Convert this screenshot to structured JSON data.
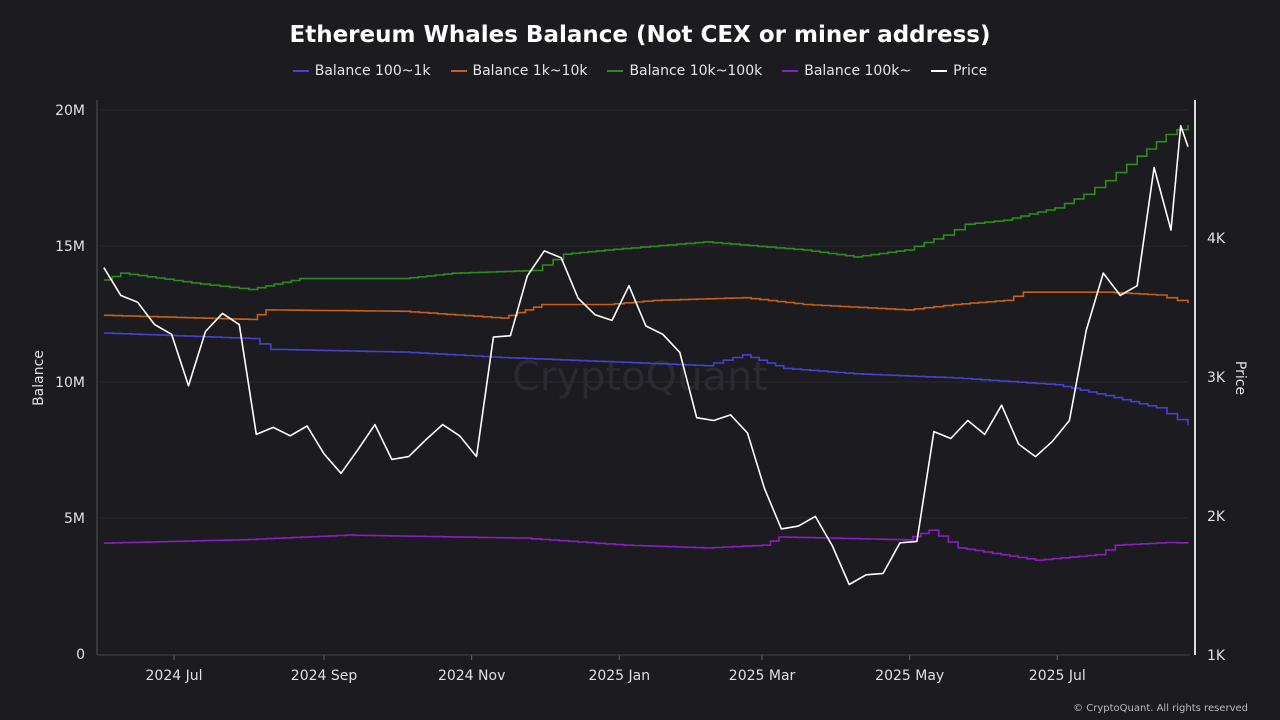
{
  "chart_data": {
    "type": "line",
    "title": "Ethereum Whales Balance (Not CEX or miner address)",
    "ylabel": "Balance",
    "y2label": "Price",
    "ylim": [
      0,
      20500000
    ],
    "y2lim": [
      1000,
      5000
    ],
    "y2scale": "linear",
    "grid": true,
    "legend": "top",
    "xticks": [
      {
        "date": "2024-07-01",
        "label": "2024 Jul"
      },
      {
        "date": "2024-09-01",
        "label": "2024 Sep"
      },
      {
        "date": "2024-11-01",
        "label": "2024 Nov"
      },
      {
        "date": "2025-01-01",
        "label": "2025 Jan"
      },
      {
        "date": "2025-03-01",
        "label": "2025 Mar"
      },
      {
        "date": "2025-05-01",
        "label": "2025 May"
      },
      {
        "date": "2025-07-01",
        "label": "2025 Jul"
      }
    ],
    "yticks": [
      {
        "v": 0,
        "label": "0"
      },
      {
        "v": 5000000,
        "label": "5M"
      },
      {
        "v": 10000000,
        "label": "10M"
      },
      {
        "v": 15000000,
        "label": "15M"
      },
      {
        "v": 20000000,
        "label": "20M"
      }
    ],
    "y2ticks": [
      {
        "v": 1000,
        "label": "1K"
      },
      {
        "v": 2000,
        "label": "2K"
      },
      {
        "v": 3000,
        "label": "3K"
      },
      {
        "v": 4000,
        "label": "4K"
      }
    ],
    "series": [
      {
        "name": "Balance 100~1k",
        "axis": "left",
        "color": "#4b3fd1",
        "points": [
          [
            "2024-06-02",
            11800000
          ],
          [
            "2024-08-01",
            11600000
          ],
          [
            "2024-08-10",
            11200000
          ],
          [
            "2024-10-03",
            11100000
          ],
          [
            "2024-11-13",
            10900000
          ],
          [
            "2024-12-26",
            10750000
          ],
          [
            "2025-02-05",
            10600000
          ],
          [
            "2025-02-21",
            11000000
          ],
          [
            "2025-03-10",
            10500000
          ],
          [
            "2025-04-08",
            10300000
          ],
          [
            "2025-05-19",
            10150000
          ],
          [
            "2025-06-30",
            9900000
          ],
          [
            "2025-07-21",
            9500000
          ],
          [
            "2025-08-11",
            9050000
          ],
          [
            "2025-08-24",
            8400000
          ]
        ]
      },
      {
        "name": "Balance 1k~10k",
        "axis": "left",
        "color": "#c8601a",
        "points": [
          [
            "2024-06-02",
            12450000
          ],
          [
            "2024-08-01",
            12300000
          ],
          [
            "2024-08-08",
            12650000
          ],
          [
            "2024-10-03",
            12600000
          ],
          [
            "2024-11-13",
            12350000
          ],
          [
            "2024-11-30",
            12850000
          ],
          [
            "2024-12-26",
            12850000
          ],
          [
            "2025-01-15",
            13000000
          ],
          [
            "2025-02-21",
            13100000
          ],
          [
            "2025-03-18",
            12850000
          ],
          [
            "2025-04-29",
            12650000
          ],
          [
            "2025-05-19",
            12850000
          ],
          [
            "2025-06-09",
            13000000
          ],
          [
            "2025-06-17",
            13300000
          ],
          [
            "2025-07-21",
            13300000
          ],
          [
            "2025-08-11",
            13200000
          ],
          [
            "2025-08-24",
            12900000
          ]
        ]
      },
      {
        "name": "Balance 10k~100k",
        "axis": "left",
        "color": "#2e8b1e",
        "points": [
          [
            "2024-06-02",
            13750000
          ],
          [
            "2024-06-09",
            14000000
          ],
          [
            "2024-07-12",
            13600000
          ],
          [
            "2024-08-01",
            13400000
          ],
          [
            "2024-08-22",
            13800000
          ],
          [
            "2024-10-03",
            13800000
          ],
          [
            "2024-10-24",
            14000000
          ],
          [
            "2024-11-26",
            14100000
          ],
          [
            "2024-12-09",
            14700000
          ],
          [
            "2024-12-26",
            14850000
          ],
          [
            "2025-02-05",
            15150000
          ],
          [
            "2025-03-18",
            14850000
          ],
          [
            "2025-04-08",
            14600000
          ],
          [
            "2025-04-29",
            14850000
          ],
          [
            "2025-05-15",
            15400000
          ],
          [
            "2025-05-24",
            15800000
          ],
          [
            "2025-06-09",
            15950000
          ],
          [
            "2025-06-30",
            16400000
          ],
          [
            "2025-07-12",
            16900000
          ],
          [
            "2025-07-21",
            17400000
          ],
          [
            "2025-08-03",
            18300000
          ],
          [
            "2025-08-15",
            19100000
          ],
          [
            "2025-08-24",
            19450000
          ]
        ]
      },
      {
        "name": "Balance 100k~",
        "axis": "left",
        "color": "#8a1fc0",
        "points": [
          [
            "2024-06-02",
            4080000
          ],
          [
            "2024-07-28",
            4200000
          ],
          [
            "2024-09-10",
            4370000
          ],
          [
            "2024-11-22",
            4260000
          ],
          [
            "2025-01-03",
            4000000
          ],
          [
            "2025-02-05",
            3900000
          ],
          [
            "2025-03-01",
            4000000
          ],
          [
            "2025-03-08",
            4300000
          ],
          [
            "2025-04-29",
            4200000
          ],
          [
            "2025-05-09",
            4550000
          ],
          [
            "2025-05-21",
            3900000
          ],
          [
            "2025-06-22",
            3450000
          ],
          [
            "2025-07-17",
            3650000
          ],
          [
            "2025-07-25",
            4000000
          ],
          [
            "2025-08-15",
            4100000
          ],
          [
            "2025-08-24",
            4080000
          ]
        ]
      },
      {
        "name": "Price",
        "axis": "right",
        "color": "#ffffff",
        "points": [
          [
            "2024-06-02",
            3780
          ],
          [
            "2024-06-09",
            3580
          ],
          [
            "2024-06-16",
            3530
          ],
          [
            "2024-06-23",
            3370
          ],
          [
            "2024-06-30",
            3300
          ],
          [
            "2024-07-07",
            2930
          ],
          [
            "2024-07-14",
            3320
          ],
          [
            "2024-07-21",
            3450
          ],
          [
            "2024-07-28",
            3370
          ],
          [
            "2024-08-04",
            2580
          ],
          [
            "2024-08-11",
            2630
          ],
          [
            "2024-08-18",
            2570
          ],
          [
            "2024-08-25",
            2640
          ],
          [
            "2024-09-01",
            2440
          ],
          [
            "2024-09-08",
            2300
          ],
          [
            "2024-09-15",
            2470
          ],
          [
            "2024-09-22",
            2650
          ],
          [
            "2024-09-29",
            2400
          ],
          [
            "2024-10-06",
            2420
          ],
          [
            "2024-10-13",
            2540
          ],
          [
            "2024-10-20",
            2650
          ],
          [
            "2024-10-27",
            2570
          ],
          [
            "2024-11-03",
            2420
          ],
          [
            "2024-11-10",
            3280
          ],
          [
            "2024-11-17",
            3290
          ],
          [
            "2024-11-24",
            3720
          ],
          [
            "2024-12-01",
            3900
          ],
          [
            "2024-12-08",
            3850
          ],
          [
            "2024-12-15",
            3560
          ],
          [
            "2024-12-22",
            3440
          ],
          [
            "2024-12-29",
            3400
          ],
          [
            "2025-01-05",
            3650
          ],
          [
            "2025-01-12",
            3360
          ],
          [
            "2025-01-19",
            3300
          ],
          [
            "2025-01-26",
            3170
          ],
          [
            "2025-02-02",
            2700
          ],
          [
            "2025-02-09",
            2680
          ],
          [
            "2025-02-16",
            2720
          ],
          [
            "2025-02-23",
            2590
          ],
          [
            "2025-03-02",
            2190
          ],
          [
            "2025-03-09",
            1900
          ],
          [
            "2025-03-16",
            1920
          ],
          [
            "2025-03-23",
            1990
          ],
          [
            "2025-03-30",
            1780
          ],
          [
            "2025-04-06",
            1500
          ],
          [
            "2025-04-13",
            1570
          ],
          [
            "2025-04-20",
            1580
          ],
          [
            "2025-04-27",
            1800
          ],
          [
            "2025-05-04",
            1810
          ],
          [
            "2025-05-11",
            2600
          ],
          [
            "2025-05-18",
            2550
          ],
          [
            "2025-05-25",
            2680
          ],
          [
            "2025-06-01",
            2580
          ],
          [
            "2025-06-08",
            2790
          ],
          [
            "2025-06-15",
            2510
          ],
          [
            "2025-06-22",
            2420
          ],
          [
            "2025-06-29",
            2530
          ],
          [
            "2025-07-06",
            2680
          ],
          [
            "2025-07-13",
            3330
          ],
          [
            "2025-07-20",
            3740
          ],
          [
            "2025-07-27",
            3580
          ],
          [
            "2025-08-03",
            3650
          ],
          [
            "2025-08-10",
            4500
          ],
          [
            "2025-08-17",
            4050
          ],
          [
            "2025-08-21",
            4800
          ],
          [
            "2025-08-24",
            4650
          ]
        ]
      }
    ]
  },
  "watermark": "CryptoQuant",
  "copyright": "© CryptoQuant. All rights reserved"
}
